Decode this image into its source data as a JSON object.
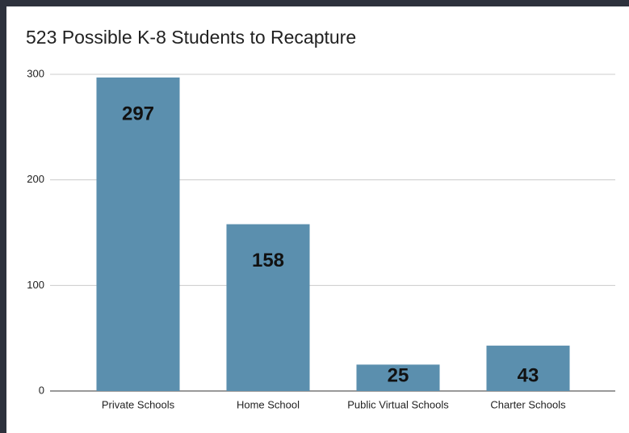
{
  "chart_data": {
    "type": "bar",
    "title": "523 Possible K-8 Students to Recapture",
    "categories": [
      "Private Schools",
      "Home School",
      "Public Virtual Schools",
      "Charter Schools"
    ],
    "values": [
      297,
      158,
      25,
      43
    ],
    "color": "#5b8fae",
    "ylim": [
      0,
      300
    ],
    "yticks": [
      0,
      100,
      200,
      300
    ],
    "grid": true
  }
}
